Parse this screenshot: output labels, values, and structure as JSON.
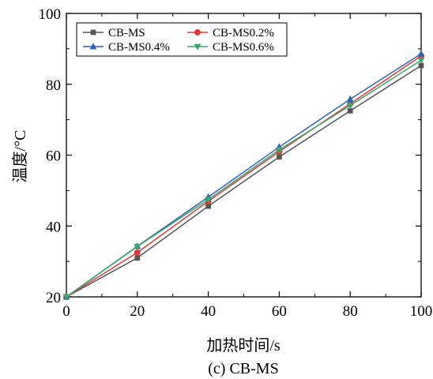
{
  "chart_data": {
    "type": "line",
    "caption": "(c) CB-MS",
    "xlabel": "加热时间/s",
    "ylabel": "温度/°C",
    "x": [
      0,
      20,
      40,
      60,
      80,
      100
    ],
    "xlim": [
      0,
      100
    ],
    "ylim": [
      20,
      100
    ],
    "xticks": [
      "0",
      "20",
      "40",
      "60",
      "80",
      "100"
    ],
    "yticks": [
      "20",
      "40",
      "60",
      "80",
      "100"
    ],
    "grid": false,
    "legend_position": "top-left",
    "series": [
      {
        "name": "CB-MS",
        "values": [
          20.0,
          31.0,
          45.6,
          59.5,
          72.5,
          85.3
        ],
        "color": "#555555",
        "marker": "square"
      },
      {
        "name": "CB-MS0.2%",
        "values": [
          20.0,
          32.5,
          47.0,
          61.0,
          74.5,
          88.0
        ],
        "color": "#d93b3b",
        "marker": "circle"
      },
      {
        "name": "CB-MS0.4%",
        "values": [
          20.0,
          34.3,
          48.2,
          62.3,
          75.8,
          88.6
        ],
        "color": "#2f62b5",
        "marker": "triangle-up"
      },
      {
        "name": "CB-MS0.6%",
        "values": [
          20.0,
          34.2,
          47.5,
          61.5,
          74.0,
          86.8
        ],
        "color": "#3aa86a",
        "marker": "triangle-down"
      }
    ]
  }
}
